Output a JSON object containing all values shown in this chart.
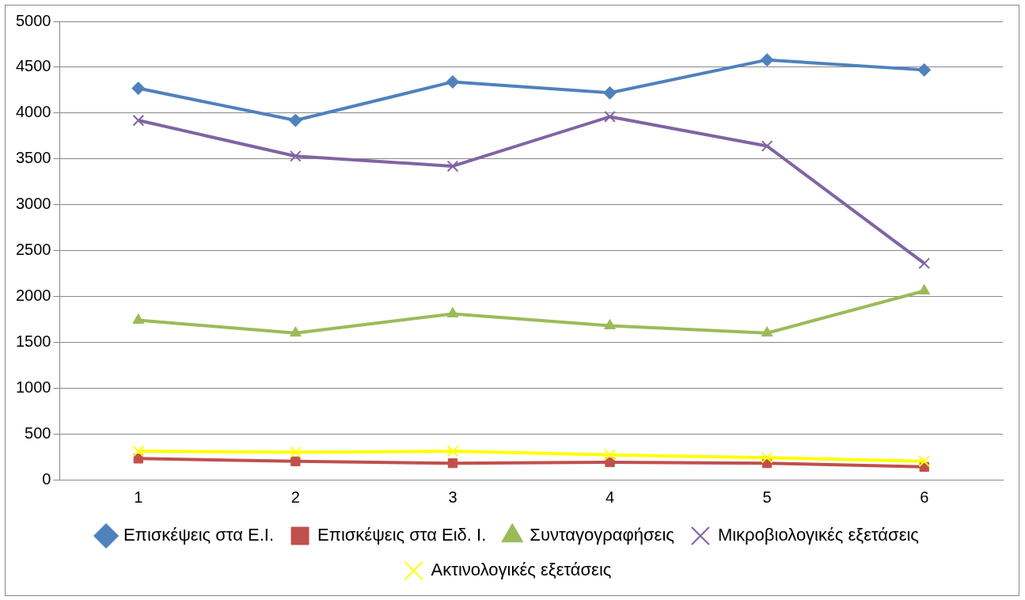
{
  "chart_data": {
    "type": "line",
    "categories": [
      "1",
      "2",
      "3",
      "4",
      "5",
      "6"
    ],
    "series": [
      {
        "name": "Επισκέψεις στα Ε.Ι.",
        "color": "#4f81bd",
        "marker": "diamond",
        "values": [
          4270,
          3920,
          4340,
          4220,
          4580,
          4470
        ]
      },
      {
        "name": "Επισκέψεις στα Ειδ. Ι.",
        "color": "#c0504d",
        "marker": "square",
        "values": [
          230,
          200,
          180,
          190,
          180,
          140
        ]
      },
      {
        "name": "Συνταγογραφήσεις",
        "color": "#9bbb59",
        "marker": "triangle",
        "values": [
          1740,
          1600,
          1810,
          1680,
          1600,
          2060
        ]
      },
      {
        "name": "Μικροβιολογικές εξετάσεις",
        "color": "#8064a2",
        "marker": "cross",
        "values": [
          3920,
          3530,
          3420,
          3960,
          3640,
          2360
        ]
      },
      {
        "name": "Ακτινολογικές εξετάσεις",
        "color": "#ffff00",
        "marker": "cross",
        "values": [
          310,
          300,
          310,
          270,
          240,
          200
        ]
      }
    ],
    "ylim": [
      0,
      5000
    ],
    "yticks": [
      0,
      500,
      1000,
      1500,
      2000,
      2500,
      3000,
      3500,
      4000,
      4500,
      5000
    ],
    "grid": "y",
    "legend": "bottom",
    "line_style": "solid"
  }
}
